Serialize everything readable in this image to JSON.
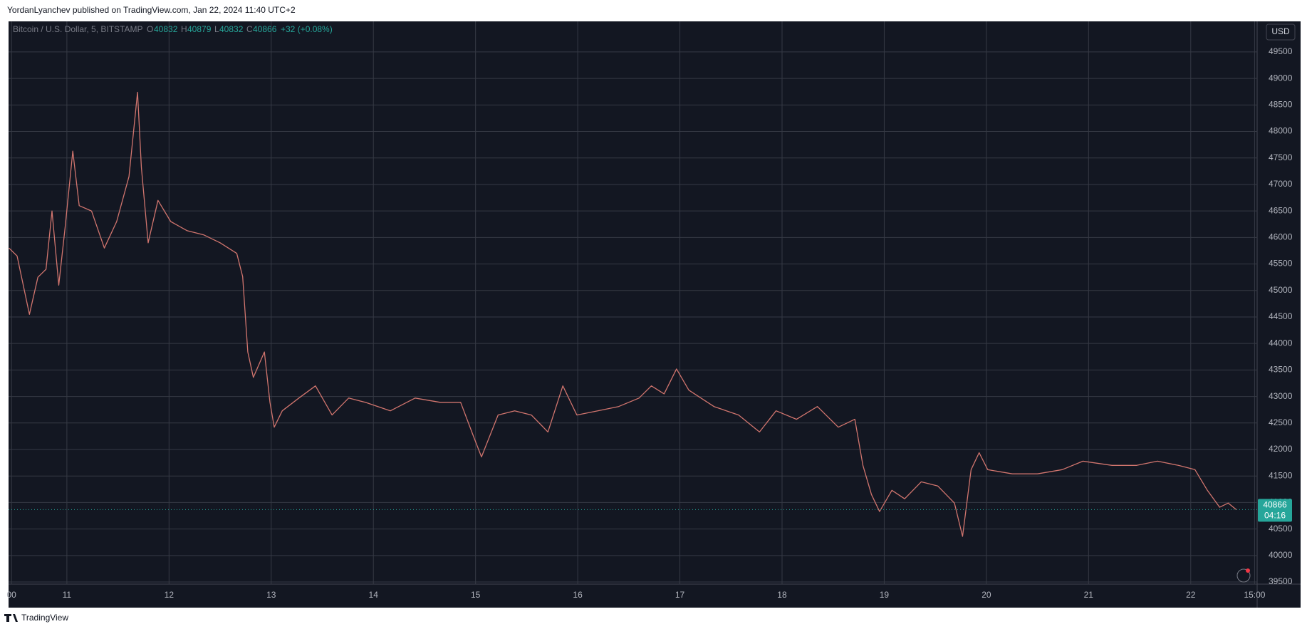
{
  "header": {
    "text": "YordanLyanchev published on TradingView.com, Jan 22, 2024 11:40 UTC+2"
  },
  "legend": {
    "symbol": "Bitcoin / U.S. Dollar, 5, BITSTAMP",
    "o_label": "O",
    "o": "40832",
    "h_label": "H",
    "h": "40879",
    "l_label": "L",
    "l": "40832",
    "c_label": "C",
    "c": "40866",
    "change": "+32 (+0.08%)"
  },
  "currency_button": "USD",
  "footer": {
    "brand": "TradingView"
  },
  "chart_data": {
    "type": "line",
    "x": [
      10.4,
      12.3,
      15.2,
      17.2,
      19.1,
      20.5,
      22.1,
      23.6,
      25.4,
      26.9,
      29.8,
      32.8,
      35.7,
      38.6,
      40.6,
      41.5,
      43.1,
      45.4,
      48.4,
      52.2,
      56.1,
      60.0,
      63.9,
      65.3,
      66.5,
      67.8,
      70.4,
      71.7,
      72.7,
      74.6,
      78.5,
      82.4,
      86.3,
      90.2,
      94.1,
      100.0,
      105.8,
      111.7,
      116.5,
      119.5,
      121.4,
      125.3,
      129.2,
      133.1,
      137.0,
      140.5,
      143.8,
      148.7,
      153.6,
      158.4,
      161.3,
      164.3,
      167.2,
      170.1,
      176.0,
      181.8,
      186.7,
      190.6,
      195.4,
      200.3,
      205.2,
      209.1,
      211.0,
      213.0,
      214.9,
      217.8,
      220.8,
      224.7,
      228.6,
      232.5,
      234.4,
      236.4,
      238.3,
      240.3,
      246.1,
      252.0,
      257.8,
      262.7,
      269.5,
      275.3,
      280.2,
      285.1,
      289.0,
      291.9,
      294.8,
      296.8,
      298.7
    ],
    "series": [
      {
        "name": "Bitcoin / U.S. Dollar",
        "color": "#d1756e",
        "values": [
          45800,
          45650,
          44550,
          45250,
          45400,
          46500,
          45100,
          46200,
          47630,
          46600,
          46500,
          45800,
          46300,
          47150,
          48740,
          47320,
          45900,
          46700,
          46300,
          46130,
          46050,
          45900,
          45700,
          45260,
          43840,
          43360,
          43840,
          42890,
          42420,
          42730,
          42970,
          43200,
          42650,
          42970,
          42890,
          42730,
          42970,
          42890,
          42890,
          42250,
          41860,
          42650,
          42730,
          42650,
          42330,
          43200,
          42650,
          42730,
          42810,
          42970,
          43200,
          43050,
          43520,
          43120,
          42810,
          42650,
          42330,
          42730,
          42570,
          42810,
          42420,
          42570,
          41700,
          41150,
          40830,
          41230,
          41070,
          41390,
          41310,
          40990,
          40360,
          41620,
          41940,
          41620,
          41540,
          41540,
          41620,
          41780,
          41700,
          41700,
          41780,
          41700,
          41620,
          41230,
          40910,
          40990,
          40866
        ]
      }
    ],
    "last_price": 40866,
    "countdown": "04:16",
    "last_color": "#26a69a",
    "xlim": [
      10.3,
      303.6
    ],
    "xticks": [
      {
        "value": 11,
        "label": "00"
      },
      {
        "value": 24,
        "label": "11"
      },
      {
        "value": 48,
        "label": "12"
      },
      {
        "value": 72,
        "label": "13"
      },
      {
        "value": 96,
        "label": "14"
      },
      {
        "value": 120,
        "label": "15"
      },
      {
        "value": 144,
        "label": "16"
      },
      {
        "value": 168,
        "label": "17"
      },
      {
        "value": 192,
        "label": "18"
      },
      {
        "value": 216,
        "label": "19"
      },
      {
        "value": 240,
        "label": "20"
      },
      {
        "value": 264,
        "label": "21"
      },
      {
        "value": 288,
        "label": "22"
      },
      {
        "value": 303,
        "label": "15:00"
      }
    ],
    "ylim": [
      39460,
      50050
    ],
    "yticks": [
      39500,
      40000,
      40500,
      41000,
      41500,
      42000,
      42500,
      43000,
      43500,
      44000,
      44500,
      45000,
      45500,
      46000,
      46500,
      47000,
      47500,
      48000,
      48500,
      49000,
      49500
    ],
    "grid": true
  }
}
